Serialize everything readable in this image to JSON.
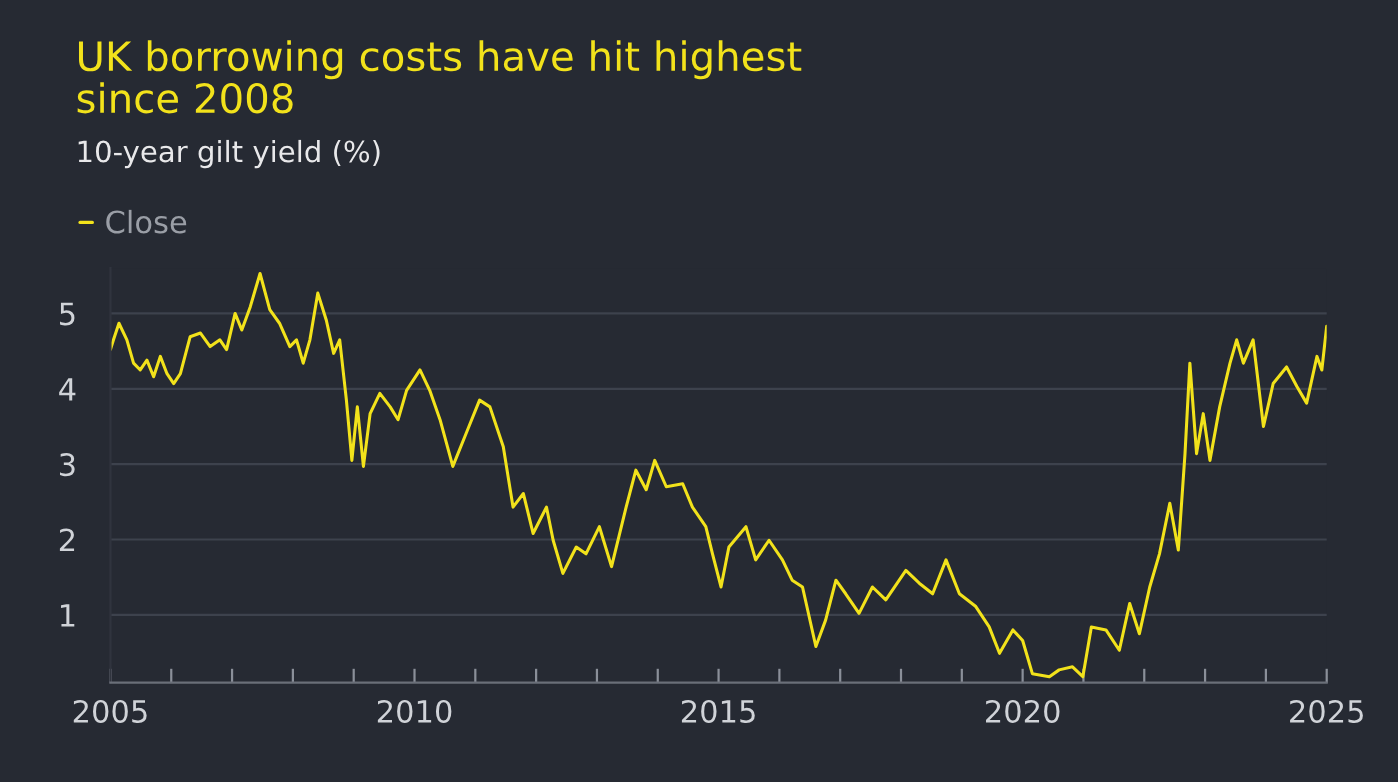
{
  "chart_data": {
    "type": "line",
    "title": "UK borrowing costs have hit highest\nsince 2008",
    "subtitle": "10-year gilt yield (%)",
    "series": [
      {
        "name": "Close",
        "color": "#f2e21b",
        "x": [
          2005.0,
          2005.05,
          2005.14,
          2005.27,
          2005.38,
          2005.49,
          2005.6,
          2005.71,
          2005.82,
          2005.93,
          2006.04,
          2006.15,
          2006.31,
          2006.48,
          2006.64,
          2006.8,
          2006.91,
          2007.05,
          2007.16,
          2007.3,
          2007.46,
          2007.62,
          2007.78,
          2007.95,
          2008.06,
          2008.17,
          2008.28,
          2008.41,
          2008.55,
          2008.67,
          2008.77,
          2008.88,
          2008.97,
          2009.06,
          2009.16,
          2009.27,
          2009.43,
          2009.6,
          2009.73,
          2009.87,
          2010.09,
          2010.25,
          2010.42,
          2010.63,
          2010.85,
          2011.07,
          2011.24,
          2011.46,
          2011.62,
          2011.79,
          2011.95,
          2012.17,
          2012.28,
          2012.44,
          2012.66,
          2012.82,
          2013.04,
          2013.24,
          2013.48,
          2013.64,
          2013.81,
          2013.95,
          2014.14,
          2014.41,
          2014.57,
          2014.79,
          2014.9,
          2015.04,
          2015.17,
          2015.45,
          2015.61,
          2015.83,
          2016.05,
          2016.21,
          2016.38,
          2016.6,
          2016.76,
          2016.93,
          2017.09,
          2017.31,
          2017.53,
          2017.75,
          2018.08,
          2018.3,
          2018.52,
          2018.74,
          2018.96,
          2019.23,
          2019.45,
          2019.62,
          2019.84,
          2020.0,
          2020.16,
          2020.44,
          2020.6,
          2020.82,
          2020.99,
          2021.13,
          2021.37,
          2021.59,
          2021.76,
          2021.92,
          2022.09,
          2022.25,
          2022.42,
          2022.56,
          2022.67,
          2022.75,
          2022.86,
          2022.97,
          2023.08,
          2023.24,
          2023.41,
          2023.52,
          2023.63,
          2023.79,
          2023.96,
          2024.12,
          2024.34,
          2024.51,
          2024.67,
          2024.84,
          2024.92,
          2025.0
        ],
        "values": [
          4.52,
          4.65,
          4.87,
          4.65,
          4.34,
          4.25,
          4.38,
          4.16,
          4.43,
          4.2,
          4.07,
          4.2,
          4.69,
          4.74,
          4.56,
          4.65,
          4.52,
          5.0,
          4.78,
          5.09,
          5.53,
          5.05,
          4.87,
          4.56,
          4.65,
          4.34,
          4.65,
          5.27,
          4.91,
          4.47,
          4.65,
          3.85,
          3.05,
          3.76,
          2.97,
          3.67,
          3.94,
          3.76,
          3.59,
          3.98,
          4.25,
          3.98,
          3.59,
          2.97,
          3.41,
          3.85,
          3.76,
          3.23,
          2.43,
          2.61,
          2.08,
          2.43,
          1.99,
          1.55,
          1.9,
          1.81,
          2.17,
          1.64,
          2.43,
          2.92,
          2.66,
          3.05,
          2.7,
          2.74,
          2.43,
          2.17,
          1.81,
          1.37,
          1.9,
          2.17,
          1.73,
          1.99,
          1.73,
          1.46,
          1.37,
          0.58,
          0.93,
          1.46,
          1.28,
          1.02,
          1.37,
          1.2,
          1.59,
          1.42,
          1.28,
          1.73,
          1.28,
          1.11,
          0.84,
          0.49,
          0.8,
          0.66,
          0.22,
          0.18,
          0.27,
          0.31,
          0.18,
          0.84,
          0.8,
          0.53,
          1.15,
          0.75,
          1.37,
          1.81,
          2.48,
          1.86,
          3.14,
          4.34,
          3.14,
          3.67,
          3.05,
          3.76,
          4.34,
          4.65,
          4.34,
          4.65,
          3.5,
          4.07,
          4.29,
          4.03,
          3.81,
          4.43,
          4.25,
          4.83
        ]
      }
    ],
    "xlim": [
      2005,
      2025
    ],
    "xticks": [
      2005,
      {
        "value": 2006,
        "label": null
      },
      {
        "value": 2007,
        "label": null
      },
      {
        "value": 2008,
        "label": null
      },
      {
        "value": 2009,
        "label": null
      },
      2010,
      {
        "value": 2011,
        "label": null
      },
      {
        "value": 2012,
        "label": null
      },
      {
        "value": 2013,
        "label": null
      },
      {
        "value": 2014,
        "label": null
      },
      2015,
      {
        "value": 2016,
        "label": null
      },
      {
        "value": 2017,
        "label": null
      },
      {
        "value": 2018,
        "label": null
      },
      {
        "value": 2019,
        "label": null
      },
      2020,
      {
        "value": 2021,
        "label": null
      },
      {
        "value": 2022,
        "label": null
      },
      {
        "value": 2023,
        "label": null
      },
      {
        "value": 2024,
        "label": null
      },
      2025
    ],
    "ylim": [
      0.1,
      5.6
    ],
    "yticks": [
      1,
      2,
      3,
      4,
      5
    ],
    "grid": "y",
    "legend": "top left",
    "line_style": "solid",
    "marker": "none"
  }
}
